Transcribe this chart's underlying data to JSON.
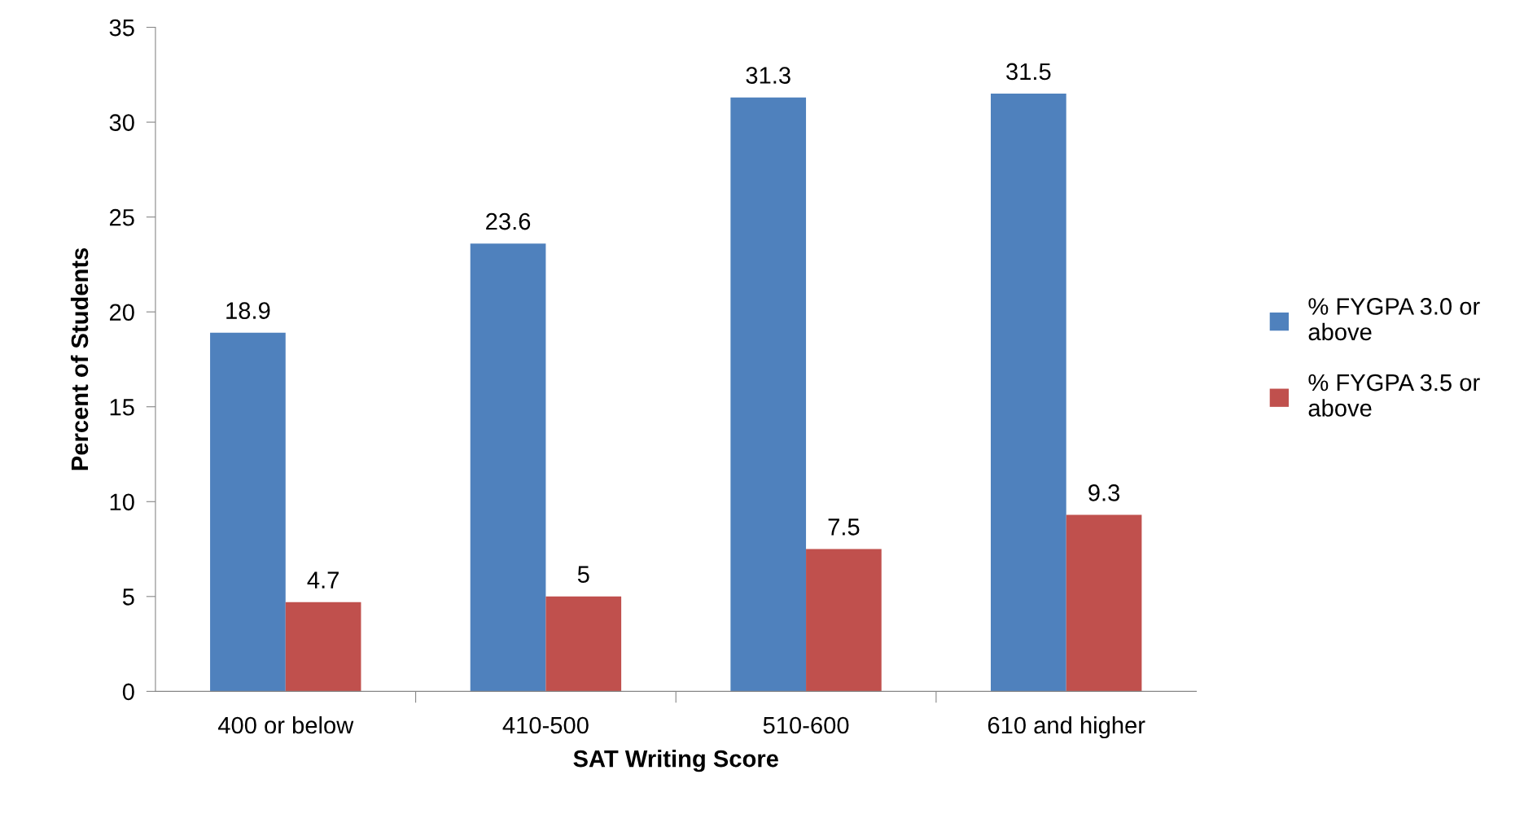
{
  "chart_data": {
    "type": "bar",
    "xlabel": "SAT Writing Score",
    "ylabel": "Percent of Students",
    "categories": [
      "400 or below",
      "410-500",
      "510-600",
      "610 and higher"
    ],
    "series": [
      {
        "name": "% FYGPA 3.0 or above",
        "color": "#4f81bd",
        "values": [
          18.9,
          23.6,
          31.3,
          31.5
        ]
      },
      {
        "name": "% FYGPA 3.5 or above",
        "color": "#c0504d",
        "values": [
          4.7,
          5,
          7.5,
          9.3
        ]
      }
    ],
    "ylim": [
      0,
      35
    ],
    "yticks": [
      0,
      5,
      10,
      15,
      20,
      25,
      30,
      35
    ],
    "grid": false,
    "legend": "right",
    "data_labels": true
  }
}
